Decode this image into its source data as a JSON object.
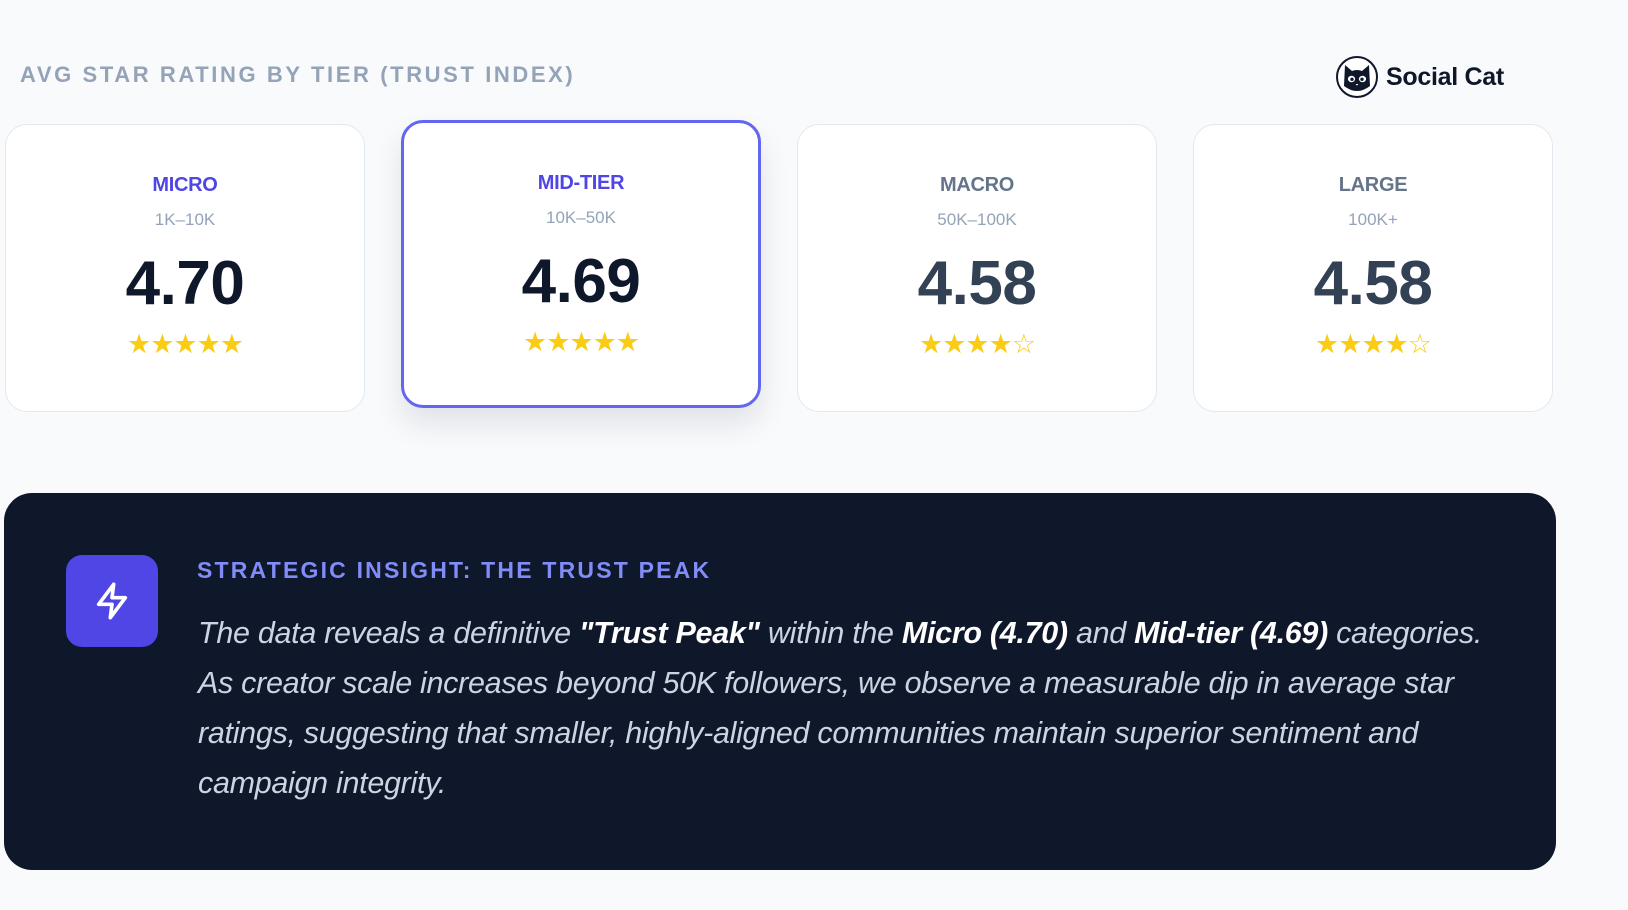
{
  "header": {
    "title": "AVG STAR RATING BY TIER (TRUST INDEX)",
    "brand": {
      "name": "Social Cat",
      "logo_icon": "cat-face-icon"
    }
  },
  "colors": {
    "accent": "#6366f1",
    "accent_dark": "#4f46e5",
    "star": "#facc15",
    "panel_bg": "#0f172a"
  },
  "tiers": [
    {
      "name": "MICRO",
      "range": "1K–10K",
      "score": "4.70",
      "stars": "★★★★★",
      "star_rating": 5,
      "highlighted": false,
      "name_color": "#4f46e5"
    },
    {
      "name": "MID-TIER",
      "range": "10K–50K",
      "score": "4.69",
      "stars": "★★★★★",
      "star_rating": 5,
      "highlighted": true,
      "name_color": "#4f46e5"
    },
    {
      "name": "MACRO",
      "range": "50K–100K",
      "score": "4.58",
      "stars": "★★★★☆",
      "star_rating": 4,
      "highlighted": false,
      "name_color": "#64748b"
    },
    {
      "name": "LARGE",
      "range": "100K+",
      "score": "4.58",
      "stars": "★★★★☆",
      "star_rating": 4,
      "highlighted": false,
      "name_color": "#64748b"
    }
  ],
  "insight": {
    "icon": "lightning-bolt-icon",
    "title": "STRATEGIC INSIGHT: THE TRUST PEAK",
    "body": {
      "p1": "The data reveals a definitive ",
      "b1": "\"Trust Peak\"",
      "p2": " within the ",
      "b2": "Micro (4.70)",
      "p3": " and ",
      "b3": "Mid-tier (4.69)",
      "p4": " categories. As creator scale increases beyond 50K followers, we observe a measurable dip in average star ratings, suggesting that smaller, highly-aligned communities maintain superior sentiment and campaign integrity."
    }
  }
}
